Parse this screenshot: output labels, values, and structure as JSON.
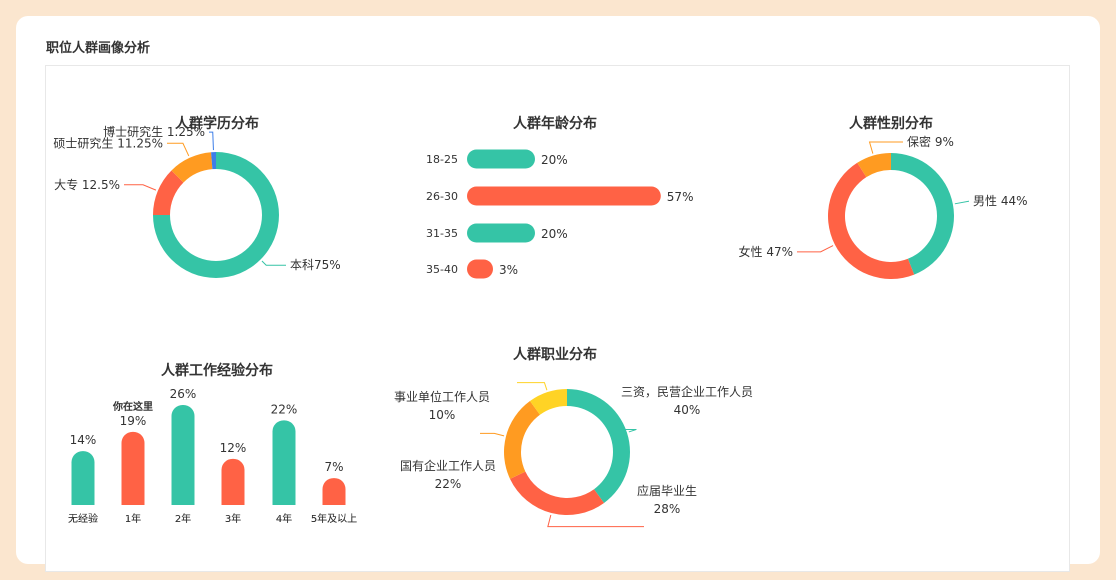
{
  "page": {
    "section_title": "职位人群画像分析"
  },
  "colors": {
    "teal": "#35c4a6",
    "red": "#ff6245",
    "orange": "#ff9b21",
    "yellow": "#ffd325",
    "blue": "#3d7ee8",
    "background": "#fbe6cf"
  },
  "chart_data": [
    {
      "type": "pie",
      "title": "人群学历分布",
      "slices": [
        {
          "label": "本科75%",
          "name": "本科",
          "value": 75,
          "color": "#35c4a6"
        },
        {
          "label": "大专 12.5%",
          "name": "大专",
          "value": 12.5,
          "color": "#ff6245"
        },
        {
          "label": "硕士研究生 11.25%",
          "name": "硕士研究生",
          "value": 11.25,
          "color": "#ff9b21"
        },
        {
          "label": "博士研究生 1.25%",
          "name": "博士研究生",
          "value": 1.25,
          "color": "#3d7ee8"
        }
      ]
    },
    {
      "type": "bar",
      "orientation": "horizontal",
      "title": "人群年龄分布",
      "categories": [
        "18-25",
        "26-30",
        "31-35",
        "35-40"
      ],
      "values": [
        20,
        57,
        20,
        3
      ],
      "value_labels": [
        "20%",
        "57%",
        "20%",
        "3%"
      ],
      "colors": [
        "#35c4a6",
        "#ff6245",
        "#35c4a6",
        "#ff6245"
      ]
    },
    {
      "type": "pie",
      "title": "人群性别分布",
      "slices": [
        {
          "label": "男性 44%",
          "name": "男性",
          "value": 44,
          "color": "#35c4a6"
        },
        {
          "label": "女性 47%",
          "name": "女性",
          "value": 47,
          "color": "#ff6245"
        },
        {
          "label": "保密 9%",
          "name": "保密",
          "value": 9,
          "color": "#ff9b21"
        }
      ]
    },
    {
      "type": "bar",
      "title": "人群工作经验分布",
      "categories": [
        "无经验",
        "1年",
        "2年",
        "3年",
        "4年",
        "5年及以上"
      ],
      "values": [
        14,
        19,
        26,
        12,
        22,
        7
      ],
      "value_labels": [
        "14%",
        "19%",
        "26%",
        "12%",
        "22%",
        "7%"
      ],
      "colors": [
        "#35c4a6",
        "#ff6245",
        "#35c4a6",
        "#ff6245",
        "#35c4a6",
        "#ff6245"
      ],
      "annotations": [
        {
          "category": "1年",
          "text": "你在这里"
        }
      ]
    },
    {
      "type": "pie",
      "title": "人群职业分布",
      "slices": [
        {
          "label_lines": [
            "三资，民营企业工作人员",
            "40%"
          ],
          "name": "三资，民营企业工作人员",
          "value": 40,
          "color": "#35c4a6"
        },
        {
          "label_lines": [
            "应届毕业生",
            "28%"
          ],
          "name": "应届毕业生",
          "value": 28,
          "color": "#ff6245"
        },
        {
          "label_lines": [
            "国有企业工作人员",
            "22%"
          ],
          "name": "国有企业工作人员",
          "value": 22,
          "color": "#ff9b21"
        },
        {
          "label_lines": [
            "事业单位工作人员",
            "10%"
          ],
          "name": "事业单位工作人员",
          "value": 10,
          "color": "#ffd325"
        }
      ]
    }
  ]
}
